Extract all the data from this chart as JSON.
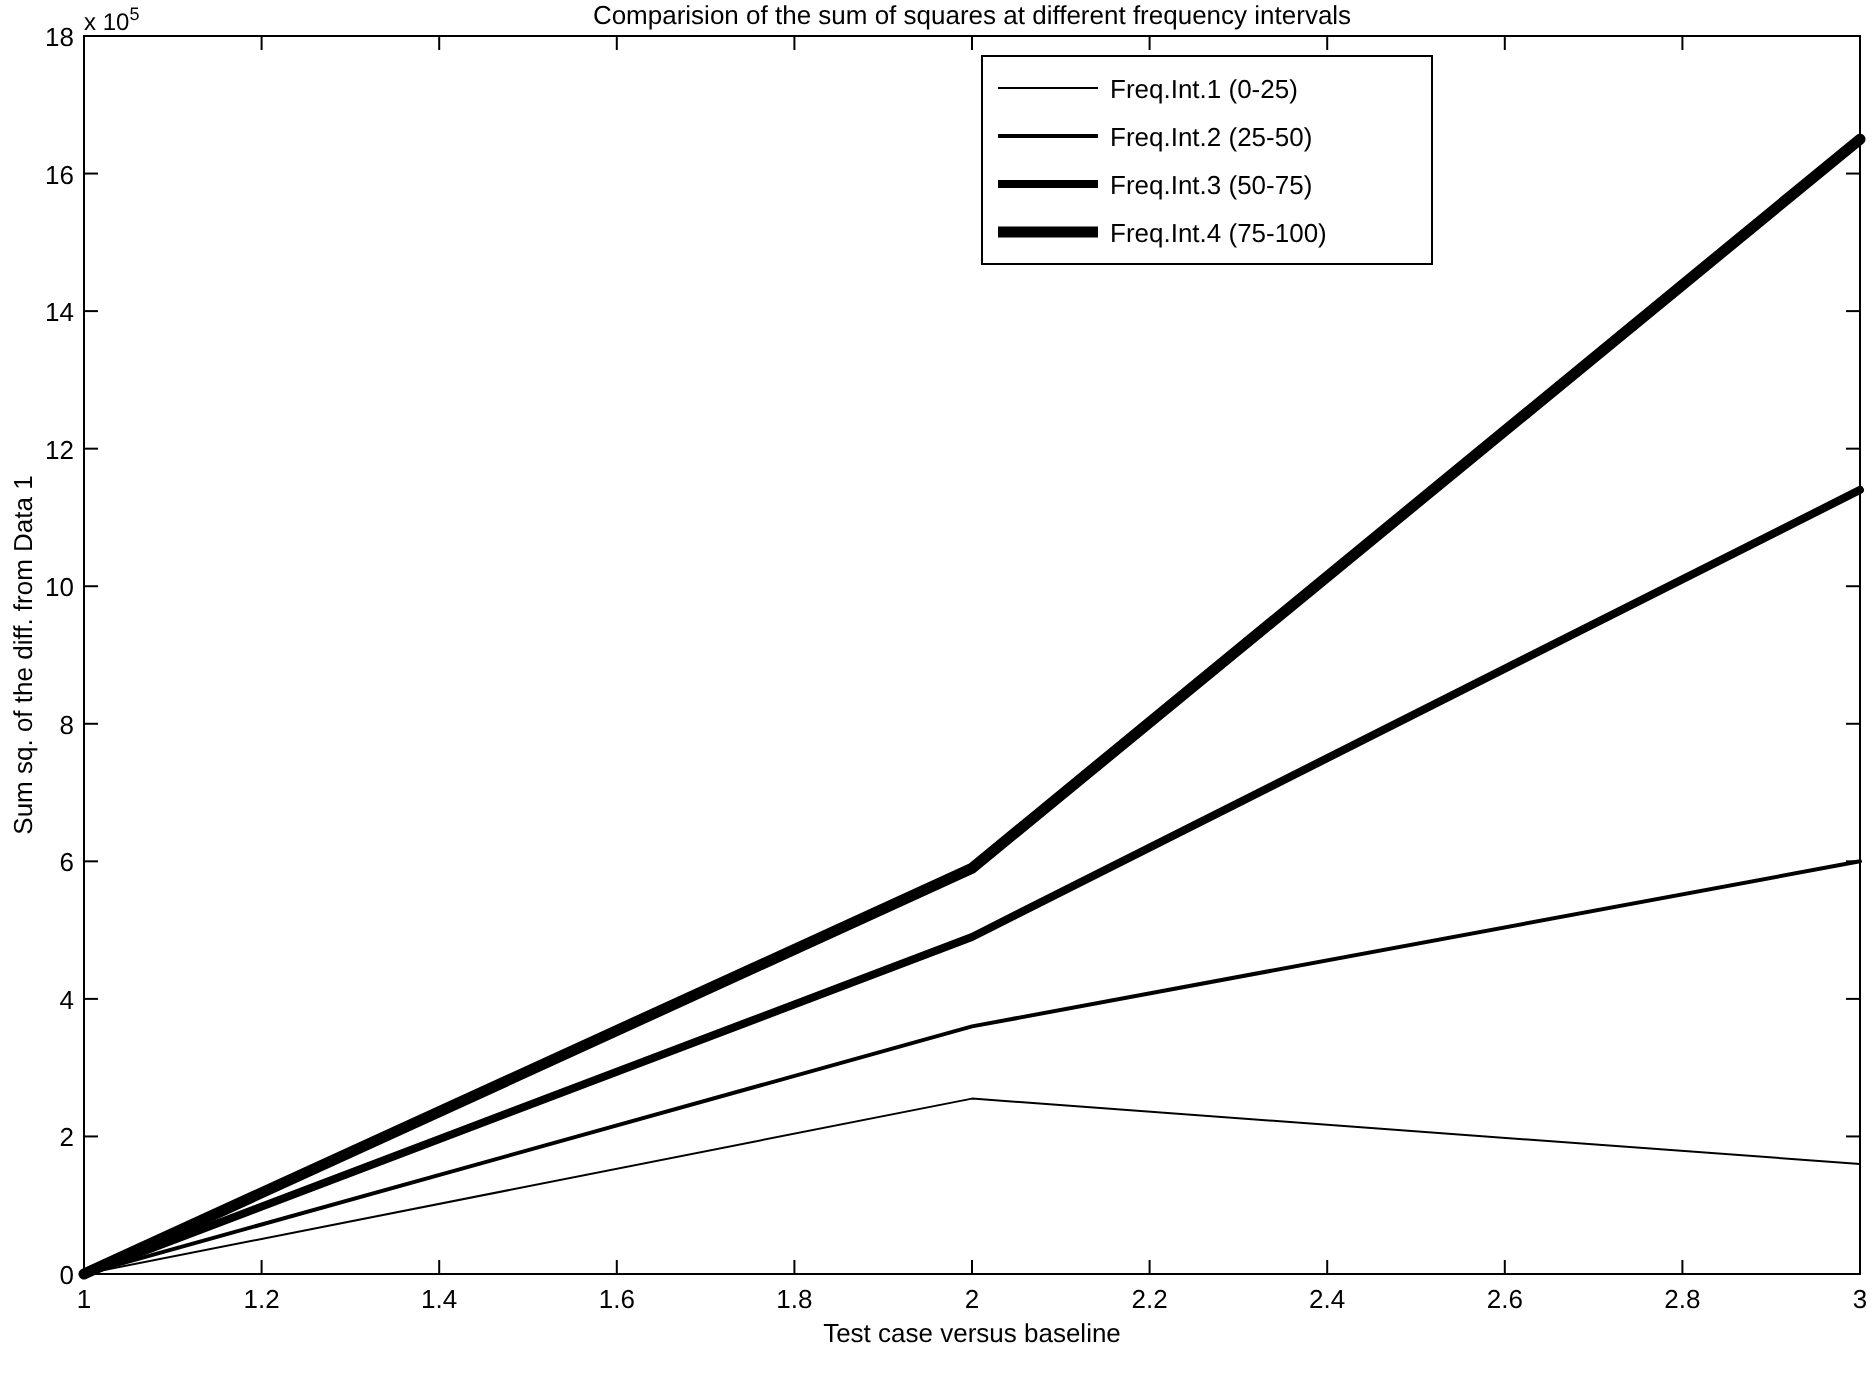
{
  "chart_data": {
    "type": "line",
    "title": "Comparision of the sum of squares at different frequency intervals",
    "xlabel": "Test case versus baseline",
    "ylabel": "Sum sq. of the diff. from Data 1",
    "annotations": [
      "x 10$^{5}$"
    ],
    "x": [
      1,
      2,
      3
    ],
    "series": [
      {
        "name": "Freq.Int.1 (0-25)",
        "color": "#000000",
        "values": [
          0,
          2.55,
          1.6
        ]
      },
      {
        "name": "Freq.Int.2 (25-50)",
        "color": "#000000",
        "values": [
          0,
          3.6,
          6.0
        ]
      },
      {
        "name": "Freq.Int.3 (50-75)",
        "color": "#000000",
        "values": [
          0,
          4.9,
          11.4
        ]
      },
      {
        "name": "Freq.Int.4 (75-100)",
        "color": "#000000",
        "values": [
          0,
          5.9,
          16.5
        ]
      }
    ],
    "xlim": [
      1,
      3
    ],
    "xticks": [
      1,
      1.2,
      1.4,
      1.6,
      1.8,
      2,
      2.2,
      2.4,
      2.6,
      2.8,
      3
    ],
    "ylim": [
      0,
      18
    ],
    "yticks": [
      0,
      2,
      4,
      6,
      8,
      10,
      12,
      14,
      16,
      18
    ],
    "grid": false,
    "legend": "top right",
    "line_style": "solid",
    "marker": "none"
  }
}
